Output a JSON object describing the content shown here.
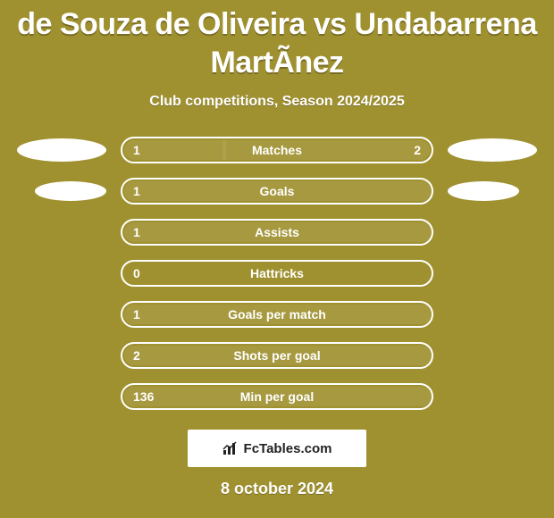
{
  "title": "de Souza de Oliveira vs Undabarrena MartÃ­nez",
  "subtitle": "Club competitions, Season 2024/2025",
  "date": "8 october 2024",
  "brand": "FcTables.com",
  "colors": {
    "background": "#a09130",
    "text": "#ffffff",
    "pill_border": "#ffffff",
    "pill_fill": "rgba(255,255,255,0.08)",
    "ellipse": "#ffffff",
    "brand_bg": "#ffffff",
    "brand_text": "#222222"
  },
  "rows": [
    {
      "label": "Matches",
      "left": "1",
      "right": "2",
      "fill_left_pct": 33,
      "fill_right_pct": 67,
      "show_right": true,
      "ellipse": "lg"
    },
    {
      "label": "Goals",
      "left": "1",
      "right": "",
      "fill_left_pct": 100,
      "fill_right_pct": 0,
      "show_right": false,
      "ellipse": "sm"
    },
    {
      "label": "Assists",
      "left": "1",
      "right": "",
      "fill_left_pct": 100,
      "fill_right_pct": 0,
      "show_right": false,
      "ellipse": "none"
    },
    {
      "label": "Hattricks",
      "left": "0",
      "right": "",
      "fill_left_pct": 0,
      "fill_right_pct": 0,
      "show_right": false,
      "ellipse": "none"
    },
    {
      "label": "Goals per match",
      "left": "1",
      "right": "",
      "fill_left_pct": 100,
      "fill_right_pct": 0,
      "show_right": false,
      "ellipse": "none"
    },
    {
      "label": "Shots per goal",
      "left": "2",
      "right": "",
      "fill_left_pct": 100,
      "fill_right_pct": 0,
      "show_right": false,
      "ellipse": "none"
    },
    {
      "label": "Min per goal",
      "left": "136",
      "right": "",
      "fill_left_pct": 100,
      "fill_right_pct": 0,
      "show_right": false,
      "ellipse": "none"
    }
  ]
}
